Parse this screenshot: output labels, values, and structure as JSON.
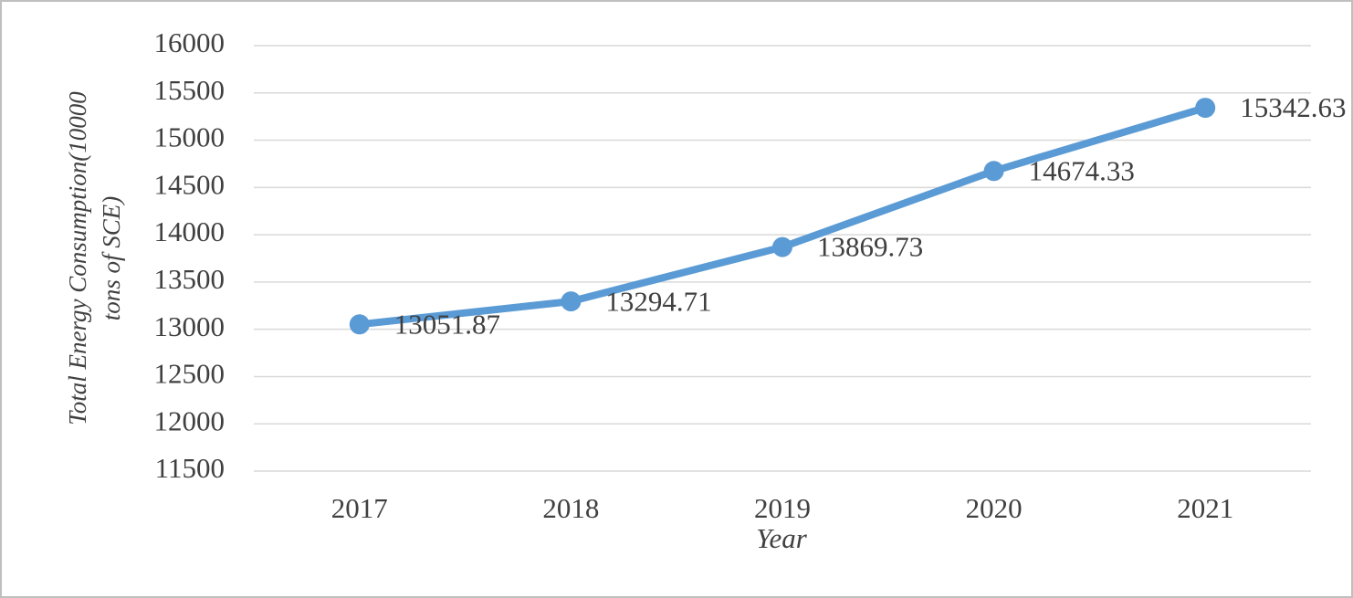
{
  "chart_data": {
    "type": "line",
    "xlabel": "Year",
    "ylabel": [
      "Total Energy Consumption(10000",
      "tons of SCE)"
    ],
    "categories": [
      "2017",
      "2018",
      "2019",
      "2020",
      "2021"
    ],
    "series": [
      {
        "name": "Total Energy Consumption",
        "color": "#5b9bd5",
        "values": [
          13051.87,
          13294.71,
          13869.73,
          14674.33,
          15342.63
        ]
      }
    ],
    "ylim": [
      11500,
      16000
    ],
    "yticks": [
      11500,
      12000,
      12500,
      13000,
      13500,
      14000,
      14500,
      15000,
      15500,
      16000
    ],
    "grid": true,
    "legend": false
  }
}
